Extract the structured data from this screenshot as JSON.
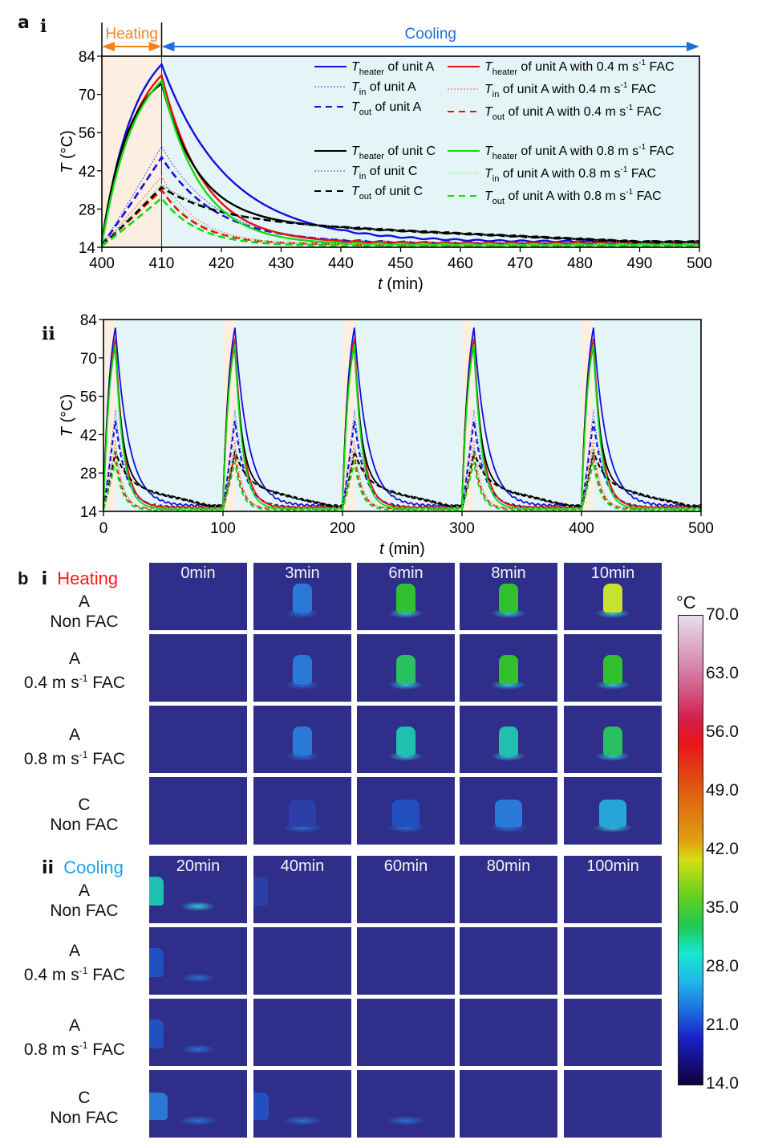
{
  "panel_a": {
    "label": "a",
    "sub_i": "i",
    "sub_ii": "ii"
  },
  "panel_b": {
    "label": "b",
    "heating_section": {
      "roman": "i",
      "title": "Heating",
      "color": "#ff1a1a"
    },
    "cooling_section": {
      "roman": "ii",
      "title": "Cooling",
      "color": "#1aa3e8"
    },
    "row_labels": [
      {
        "unit": "A",
        "condition": "Non FAC",
        "speed": ""
      },
      {
        "unit": "A",
        "condition": "FAC",
        "speed": "0.4 m s",
        "exp": "-1"
      },
      {
        "unit": "A",
        "condition": "FAC",
        "speed": "0.8 m s",
        "exp": "-1"
      },
      {
        "unit": "C",
        "condition": "Non FAC",
        "speed": ""
      }
    ],
    "heating_times": [
      "0min",
      "3min",
      "6min",
      "8min",
      "10min"
    ],
    "cooling_times": [
      "20min",
      "40min",
      "60min",
      "80min",
      "100min"
    ],
    "heating_grid_temps": [
      [
        14,
        24,
        37,
        39,
        42
      ],
      [
        14,
        24,
        34,
        37,
        37
      ],
      [
        14,
        24,
        32,
        33,
        36
      ],
      [
        14,
        20,
        23,
        25,
        29
      ]
    ],
    "cooling_grid_temps": [
      [
        31,
        19,
        15,
        15,
        15
      ],
      [
        22,
        15,
        15,
        15,
        15
      ],
      [
        21,
        15,
        15,
        15,
        15
      ],
      [
        24,
        23,
        16,
        15,
        15
      ]
    ],
    "colorbar": {
      "unit": "°C",
      "ticks": [
        "70.0",
        "63.0",
        "56.0",
        "49.0",
        "42.0",
        "35.0",
        "28.0",
        "21.0",
        "14.0"
      ],
      "range": [
        14.0,
        70.0
      ]
    }
  },
  "chart_data": [
    {
      "id": "a-i",
      "type": "line",
      "title": "",
      "xlabel": "t (min)",
      "ylabel": "T (°C)",
      "xlim": [
        400,
        500
      ],
      "ylim": [
        14,
        84
      ],
      "xticks": [
        "400",
        "410",
        "420",
        "430",
        "440",
        "450",
        "460",
        "470",
        "480",
        "490",
        "500"
      ],
      "yticks": [
        "14",
        "28",
        "42",
        "56",
        "70",
        "84"
      ],
      "phases": [
        {
          "label": "Heating",
          "range": [
            400,
            410
          ],
          "color": "#f7821b",
          "bg": "#fcefe2"
        },
        {
          "label": "Cooling",
          "range": [
            410,
            500
          ],
          "color": "#1e6fd9",
          "bg": "#e5f5f7"
        }
      ],
      "legend_position": "top-right",
      "series": [
        {
          "name": "Theater of unit A",
          "sym": "T",
          "sub": "heater",
          "text": " of unit A",
          "color": "#1010e0",
          "style": "solid",
          "start": 16,
          "peak": 81,
          "final": 16,
          "tau": 11
        },
        {
          "name": "Tin of unit A",
          "sym": "T",
          "sub": "in",
          "text": " of unit A",
          "color": "#6666ee",
          "style": "dotted",
          "start": 15,
          "peak": 51,
          "final": 15.5,
          "tau": 9
        },
        {
          "name": "Tout of unit A",
          "sym": "T",
          "sub": "out",
          "text": " of unit A",
          "color": "#1010e0",
          "style": "dashed",
          "start": 15,
          "peak": 47,
          "final": 15.5,
          "tau": 9
        },
        {
          "name": "Theater of unit A with 0.4 m s-1 FAC",
          "sym": "T",
          "sub": "heater",
          "text": " of unit A with 0.4 m s",
          "exp": "-1",
          "tail": " FAC",
          "color": "#e81010",
          "style": "solid",
          "start": 15,
          "peak": 77,
          "final": 15.5,
          "tau": 7
        },
        {
          "name": "Tin of unit A with 0.4 m s-1 FAC",
          "sym": "T",
          "sub": "in",
          "text": " of unit A with 0.4 m s",
          "exp": "-1",
          "tail": " FAC",
          "color": "#ee7777",
          "style": "dotted",
          "start": 15,
          "peak": 40,
          "final": 15,
          "tau": 6
        },
        {
          "name": "Tout of unit A with 0.4 m s-1 FAC",
          "sym": "T",
          "sub": "out",
          "text": " of unit A with 0.4 m s",
          "exp": "-1",
          "tail": " FAC",
          "color": "#e81010",
          "style": "dashed",
          "start": 15,
          "peak": 35,
          "final": 15,
          "tau": 6
        },
        {
          "name": "Theater of unit C",
          "sym": "T",
          "sub": "heater",
          "text": " of unit C",
          "color": "#000000",
          "style": "solid",
          "start": 16,
          "peak": 74,
          "final": 16,
          "tau": 6,
          "slow": true
        },
        {
          "name": "Tin of unit C",
          "sym": "T",
          "sub": "in",
          "text": " of unit C",
          "color": "#777777",
          "style": "dotted",
          "start": 15,
          "peak": 37,
          "final": 16,
          "tau": 9,
          "slow": true
        },
        {
          "name": "Tout of unit C",
          "sym": "T",
          "sub": "out",
          "text": " of unit C",
          "color": "#000000",
          "style": "dashed",
          "start": 15,
          "peak": 36,
          "final": 16,
          "tau": 9,
          "slow": true
        },
        {
          "name": "Theater of unit A with 0.8 m s-1 FAC",
          "sym": "T",
          "sub": "heater",
          "text": " of unit A with 0.8 m s",
          "exp": "-1",
          "tail": " FAC",
          "color": "#10dd10",
          "style": "solid",
          "start": 15,
          "peak": 75,
          "final": 15,
          "tau": 6.5
        },
        {
          "name": "Tin of unit A with 0.8 m s-1 FAC",
          "sym": "T",
          "sub": "in",
          "text": " of unit A with 0.8 m s",
          "exp": "-1",
          "tail": " FAC",
          "color": "#88ee88",
          "style": "dotted",
          "start": 15,
          "peak": 37,
          "final": 15,
          "tau": 6
        },
        {
          "name": "Tout of unit A with 0.8 m s-1 FAC",
          "sym": "T",
          "sub": "out",
          "text": " of unit A with 0.8 m s",
          "exp": "-1",
          "tail": " FAC",
          "color": "#10dd10",
          "style": "dashed",
          "start": 14.5,
          "peak": 32,
          "final": 14.5,
          "tau": 6
        }
      ]
    },
    {
      "id": "a-ii",
      "type": "line",
      "title": "",
      "xlabel": "t (min)",
      "ylabel": "T (°C)",
      "xlim": [
        0,
        500
      ],
      "ylim": [
        14,
        84
      ],
      "xticks": [
        "0",
        "100",
        "200",
        "300",
        "400",
        "500"
      ],
      "yticks": [
        "14",
        "28",
        "42",
        "56",
        "70",
        "84"
      ],
      "cycles": 5,
      "cycle_period_min": 100,
      "heating_duration_min": 10,
      "note": "Same 12 series as panel a-i repeated over 5 heating/cooling cycles"
    }
  ]
}
